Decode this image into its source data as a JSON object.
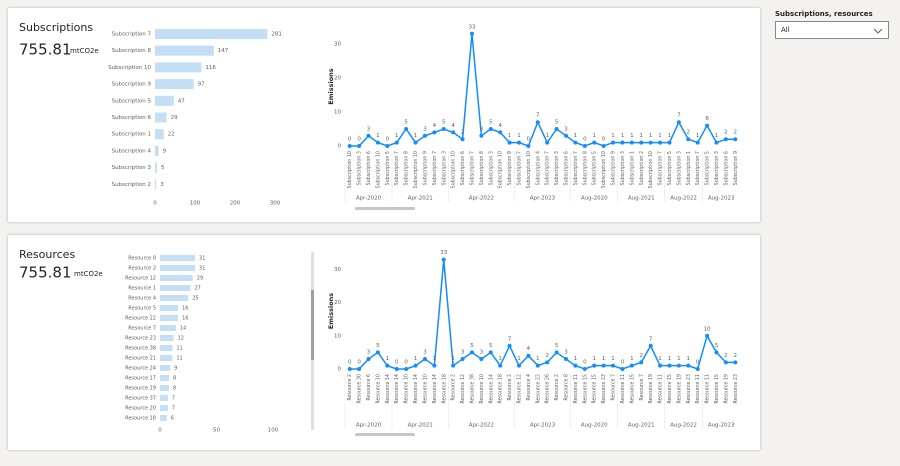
{
  "slicer": {
    "label": "Subscriptions, resources",
    "value": "All"
  },
  "cards": [
    {
      "title": "Subscriptions",
      "kpi": 755.81,
      "unit": "mtCO2e"
    },
    {
      "title": "Resources",
      "kpi": 755.81,
      "unit": "mtCO2e"
    }
  ],
  "chart_data": [
    {
      "type": "bar",
      "horizontal": true,
      "color": "#c4dff5",
      "categories": [
        "Subscription 7",
        "Subscription 8",
        "Subscription 10",
        "Subscription 9",
        "Subscription 5",
        "Subscription 6",
        "Subscription 1",
        "Subscription 4",
        "Subscription 3",
        "Subscription 2"
      ],
      "values": [
        281,
        147,
        116,
        97,
        47,
        29,
        22,
        9,
        5,
        3
      ],
      "xlim": [
        0,
        300
      ],
      "xticks": [
        0,
        100,
        200,
        300
      ]
    },
    {
      "type": "line",
      "color": "#118dff",
      "y_label": "Emissions",
      "grid": false,
      "category_groups": [
        {
          "label": "Apr-2020",
          "categories": [
            "Subscription 10",
            "Subscription 3",
            "Subscription 6",
            "Subscription 10",
            "Subscription 5"
          ]
        },
        {
          "label": "Apr-2021",
          "categories": [
            "Subscription 7",
            "Subscription 8",
            "Subscription 10",
            "Subscription 9",
            "Subscription 7",
            "Subscription 3"
          ]
        },
        {
          "label": "Apr-2022",
          "categories": [
            "Subscription 10",
            "Subscription 6",
            "Subscription 7",
            "Subscription 8",
            "Subscription 3",
            "Subscription 10",
            "Subscription 9"
          ]
        },
        {
          "label": "Apr-2023",
          "categories": [
            "Subscription 7",
            "Subscription 10",
            "Subscription 4",
            "Subscription 7",
            "Subscription 3",
            "Subscription 6"
          ]
        },
        {
          "label": "Aug-2020",
          "categories": [
            "Subscription 7",
            "Subscription 8",
            "Subscription 5",
            "Subscription 10",
            "Subscription 9"
          ]
        },
        {
          "label": "Aug-2021",
          "categories": [
            "Subscription 3",
            "Subscription 1",
            "Subscription 2",
            "Subscription 10",
            "Subscription 7"
          ]
        },
        {
          "label": "Aug-2022",
          "categories": [
            "Subscription 5",
            "Subscription 3",
            "Subscription 1",
            "Subscription 7"
          ]
        },
        {
          "label": "Aug-2023",
          "categories": [
            "Subscription 5",
            "Subscription 3",
            "Subscription 6",
            "Subscription 9"
          ]
        }
      ],
      "values": [
        0,
        0,
        3,
        1,
        0,
        1,
        5,
        1,
        3,
        4,
        5,
        4,
        2,
        33,
        3,
        5,
        4,
        1,
        1,
        0,
        7,
        1,
        5,
        3,
        1,
        0,
        1,
        0,
        1,
        1,
        1,
        1,
        1,
        1,
        1,
        7,
        2,
        1,
        6,
        1,
        2,
        2
      ],
      "ylim": [
        0,
        35
      ],
      "yticks": [
        0,
        10,
        20,
        30
      ]
    },
    {
      "type": "bar",
      "horizontal": true,
      "color": "#c4dff5",
      "categories": [
        "Resource 8",
        "Resource 2",
        "Resource 12",
        "Resource 1",
        "Resource 4",
        "Resource 5",
        "Resource 22",
        "Resource 7",
        "Resource 23",
        "Resource 38",
        "Resource 21",
        "Resource 24",
        "Resource 17",
        "Resource 19",
        "Resource 37",
        "Resource 20",
        "Resource 18"
      ],
      "values": [
        31,
        31,
        29,
        27,
        25,
        16,
        16,
        14,
        12,
        11,
        11,
        9,
        8,
        8,
        7,
        7,
        6
      ],
      "xlim": [
        0,
        100
      ],
      "xticks": [
        0,
        50,
        100
      ]
    },
    {
      "type": "line",
      "color": "#118dff",
      "y_label": "Emissions",
      "grid": false,
      "category_groups": [
        {
          "label": "Apr-2020",
          "categories": [
            "Resource 2",
            "Resource 30",
            "Resource 6",
            "Resource 10",
            "Resource 14"
          ]
        },
        {
          "label": "Apr-2021",
          "categories": [
            "Resource 14",
            "Resource 10",
            "Resource 14",
            "Resource 10",
            "Resource 14",
            "Resource 18"
          ]
        },
        {
          "label": "Apr-2022",
          "categories": [
            "Resource 2",
            "Resource 12",
            "Resource 38",
            "Resource 10",
            "Resource 14",
            "Resource 18",
            "Resource 2"
          ]
        },
        {
          "label": "Apr-2023",
          "categories": [
            "Resource 12",
            "Resource 4",
            "Resource 22",
            "Resource 26",
            "Resource 2",
            "Resource 8"
          ]
        },
        {
          "label": "Aug-2020",
          "categories": [
            "Resource 11",
            "Resource 15",
            "Resource 15",
            "Resource 23",
            "Resource 7"
          ]
        },
        {
          "label": "Aug-2021",
          "categories": [
            "Resource 11",
            "Resource 15",
            "Resource 7",
            "Resource 19",
            "Resource 11"
          ]
        },
        {
          "label": "Aug-2022",
          "categories": [
            "Resource 15",
            "Resource 19",
            "Resource 23",
            "Resource 11"
          ]
        },
        {
          "label": "Aug-2023",
          "categories": [
            "Resource 11",
            "Resource 15",
            "Resource 19",
            "Resource 23"
          ]
        }
      ],
      "values": [
        0,
        0,
        3,
        5,
        1,
        0,
        0,
        1,
        3,
        1,
        33,
        1,
        3,
        5,
        3,
        5,
        1,
        7,
        1,
        4,
        1,
        2,
        5,
        3,
        1,
        0,
        1,
        1,
        1,
        0,
        1,
        2,
        7,
        1,
        1,
        1,
        1,
        0,
        10,
        5,
        2,
        2
      ],
      "ylim": [
        0,
        35
      ],
      "yticks": [
        0,
        10,
        20,
        30
      ]
    }
  ]
}
